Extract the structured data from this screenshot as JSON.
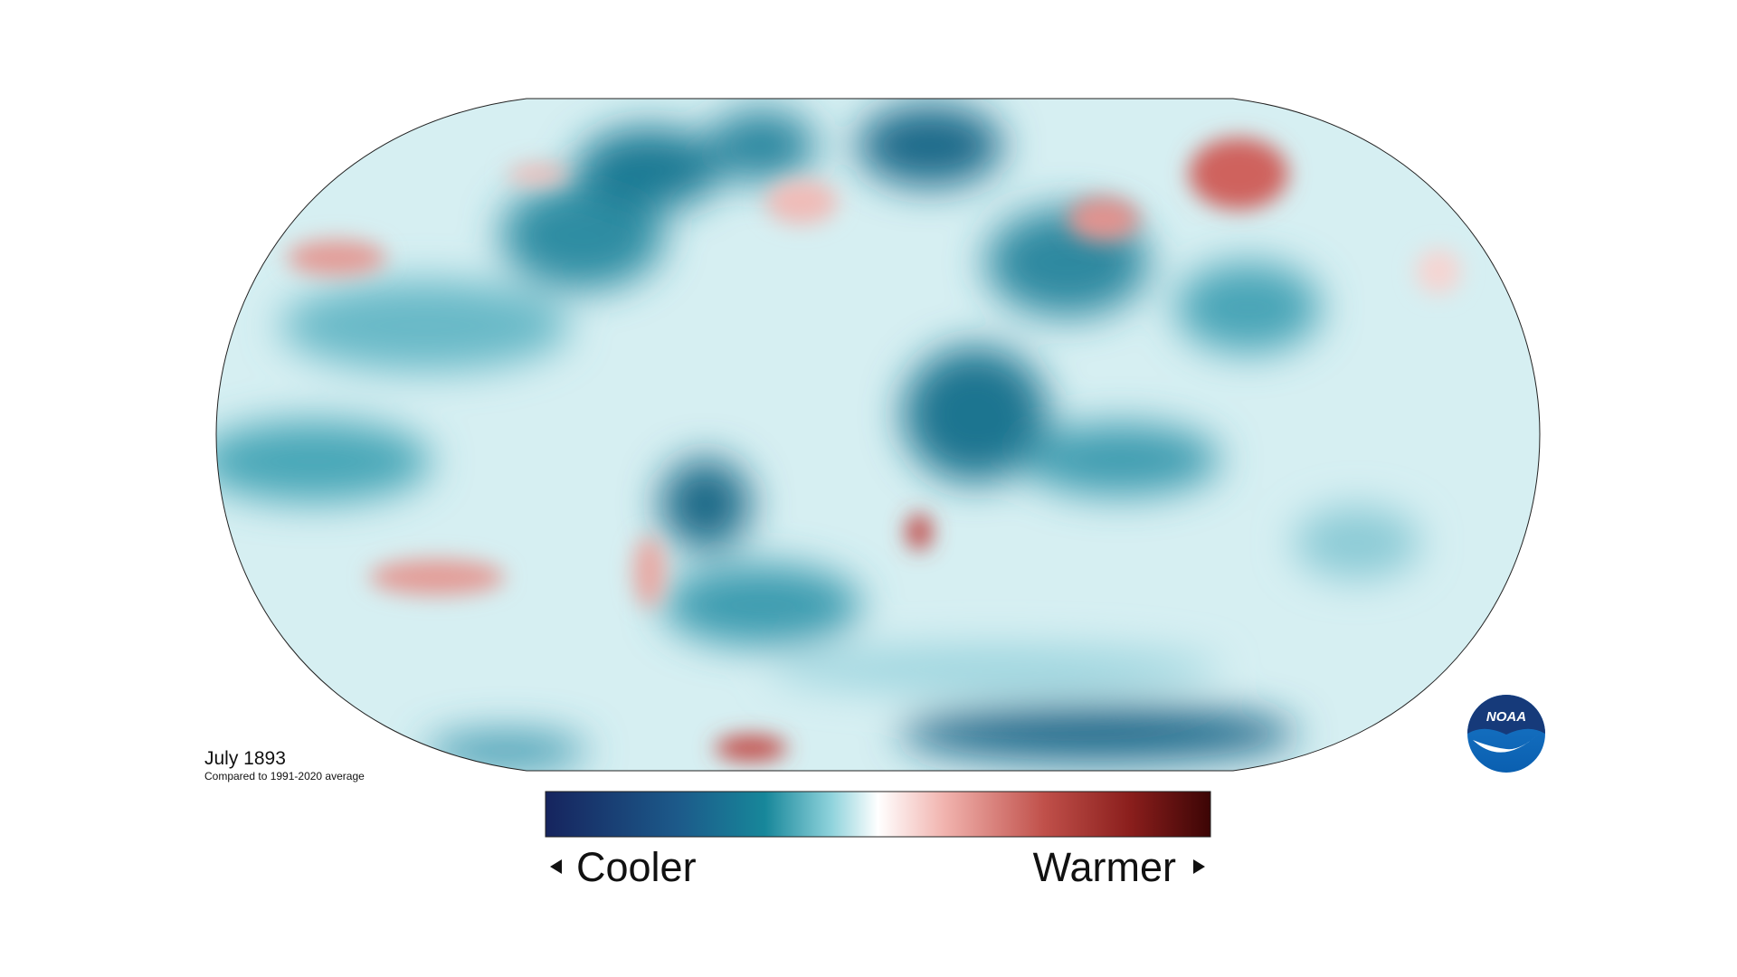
{
  "map": {
    "title": "July 1893",
    "subtitle": "Compared to 1991-2020 average"
  },
  "legend": {
    "low_label": "Cooler",
    "high_label": "Warmer"
  },
  "logo": {
    "text": "NOAA"
  }
}
